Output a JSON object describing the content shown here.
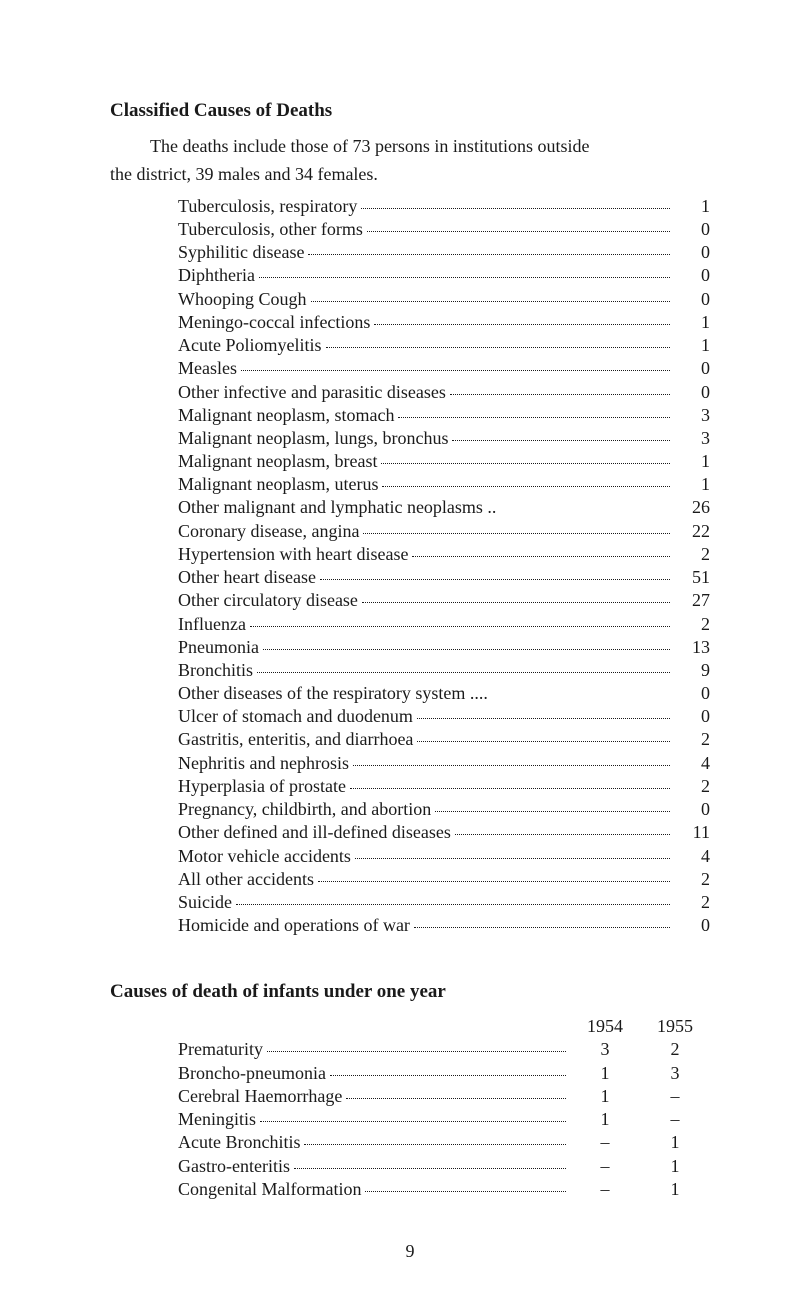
{
  "section1": {
    "title": "Classified Causes of Deaths",
    "intro": "The deaths include those of 73 persons in institutions outside",
    "intro_contd": "the district, 39 males and 34 females.",
    "rows": [
      {
        "label": "Tuberculosis, respiratory",
        "value": "1"
      },
      {
        "label": "Tuberculosis, other forms",
        "value": "0"
      },
      {
        "label": "Syphilitic disease",
        "value": "0"
      },
      {
        "label": "Diphtheria",
        "value": "0"
      },
      {
        "label": "Whooping Cough",
        "value": "0"
      },
      {
        "label": "Meningo-coccal infections",
        "value": "1"
      },
      {
        "label": "Acute Poliomyelitis",
        "value": "1"
      },
      {
        "label": "Measles",
        "value": "0"
      },
      {
        "label": "Other infective and parasitic diseases",
        "value": "0"
      },
      {
        "label": "Malignant neoplasm, stomach",
        "value": "3"
      },
      {
        "label": "Malignant neoplasm, lungs, bronchus",
        "value": "3"
      },
      {
        "label": "Malignant neoplasm, breast",
        "value": "1"
      },
      {
        "label": "Malignant neoplasm, uterus",
        "value": "1"
      },
      {
        "label": "Other malignant and lymphatic neoplasms ..",
        "value": "26",
        "nodots": true
      },
      {
        "label": "Coronary disease, angina",
        "value": "22"
      },
      {
        "label": "Hypertension with heart disease",
        "value": "2"
      },
      {
        "label": "Other heart disease",
        "value": "51"
      },
      {
        "label": "Other circulatory disease",
        "value": "27"
      },
      {
        "label": "Influenza",
        "value": "2"
      },
      {
        "label": "Pneumonia",
        "value": "13"
      },
      {
        "label": "Bronchitis",
        "value": "9"
      },
      {
        "label": "Other diseases of the respiratory system ....",
        "value": "0",
        "nodots": true
      },
      {
        "label": "Ulcer of stomach and duodenum",
        "value": "0"
      },
      {
        "label": "Gastritis, enteritis, and diarrhoea",
        "value": "2"
      },
      {
        "label": "Nephritis and nephrosis",
        "value": "4"
      },
      {
        "label": "Hyperplasia of prostate",
        "value": "2"
      },
      {
        "label": "Pregnancy, childbirth, and abortion",
        "value": "0"
      },
      {
        "label": "Other defined and ill-defined diseases",
        "value": "11"
      },
      {
        "label": "Motor vehicle accidents",
        "value": "4"
      },
      {
        "label": "All other accidents",
        "value": "2"
      },
      {
        "label": "Suicide",
        "value": "2"
      },
      {
        "label": "Homicide and operations of war",
        "value": "0"
      }
    ]
  },
  "section2": {
    "title": "Causes of death of infants under one year",
    "year1": "1954",
    "year2": "1955",
    "rows": [
      {
        "label": "Prematurity",
        "v1": "3",
        "v2": "2"
      },
      {
        "label": "Broncho-pneumonia",
        "v1": "1",
        "v2": "3"
      },
      {
        "label": "Cerebral Haemorrhage",
        "v1": "1",
        "v2": "–"
      },
      {
        "label": "Meningitis",
        "v1": "1",
        "v2": "–"
      },
      {
        "label": "Acute Bronchitis",
        "v1": "–",
        "v2": "1"
      },
      {
        "label": "Gastro-enteritis",
        "v1": "–",
        "v2": "1"
      },
      {
        "label": "Congenital Malformation",
        "v1": "–",
        "v2": "1"
      }
    ]
  },
  "page_number": "9"
}
